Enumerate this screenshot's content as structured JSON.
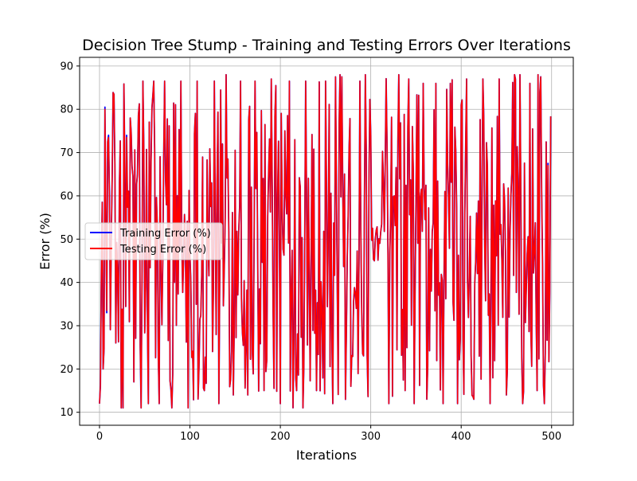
{
  "chart_data": {
    "type": "line",
    "title": "Decision Tree Stump - Training and Testing Errors Over Iterations",
    "xlabel": "Iterations",
    "ylabel": "Error (%)",
    "xlim": [
      -22,
      524
    ],
    "ylim": [
      7,
      92
    ],
    "xticks": [
      0,
      100,
      200,
      300,
      400,
      500
    ],
    "yticks": [
      10,
      20,
      30,
      40,
      50,
      60,
      70,
      80,
      90
    ],
    "grid": true,
    "legend_position": "center-left",
    "n_points": 500,
    "series": [
      {
        "name": "Training Error (%)",
        "color": "#0000ff",
        "anchors": [
          [
            0,
            12
          ],
          [
            2,
            41.5
          ],
          [
            4,
            20
          ],
          [
            6,
            80.5
          ],
          [
            8,
            33
          ],
          [
            10,
            74
          ],
          [
            14,
            64
          ],
          [
            18,
            26
          ],
          [
            22,
            63
          ],
          [
            26,
            11
          ],
          [
            30,
            74
          ],
          [
            34,
            78
          ],
          [
            38,
            17
          ],
          [
            42,
            65
          ],
          [
            46,
            11
          ],
          [
            48,
            86.5
          ],
          [
            54,
            12
          ],
          [
            60,
            86.5
          ],
          [
            66,
            12
          ],
          [
            72,
            86.5
          ],
          [
            80,
            11
          ],
          [
            90,
            86.5
          ],
          [
            98,
            11
          ],
          [
            108,
            86.5
          ],
          [
            116,
            15
          ],
          [
            124,
            63
          ],
          [
            132,
            12
          ],
          [
            140,
            88
          ],
          [
            148,
            14
          ],
          [
            156,
            86.5
          ],
          [
            164,
            14
          ],
          [
            172,
            86.5
          ],
          [
            182,
            15
          ],
          [
            190,
            87
          ],
          [
            200,
            12
          ],
          [
            210,
            86.5
          ],
          [
            218,
            15
          ],
          [
            228,
            86.5
          ],
          [
            240,
            15
          ],
          [
            250,
            86.5
          ],
          [
            258,
            12
          ],
          [
            268,
            87.5
          ],
          [
            278,
            16
          ],
          [
            288,
            86.5
          ],
          [
            296,
            23
          ],
          [
            300,
            74
          ],
          [
            304,
            45
          ],
          [
            316,
            68
          ],
          [
            320,
            12
          ],
          [
            326,
            60
          ],
          [
            338,
            15
          ],
          [
            342,
            87
          ],
          [
            348,
            12
          ],
          [
            358,
            86
          ],
          [
            362,
            13
          ],
          [
            372,
            86
          ],
          [
            380,
            12
          ],
          [
            388,
            86
          ],
          [
            396,
            12
          ],
          [
            406,
            87
          ],
          [
            414,
            13
          ],
          [
            424,
            87
          ],
          [
            432,
            12
          ],
          [
            442,
            87
          ],
          [
            450,
            14
          ],
          [
            460,
            87
          ],
          [
            468,
            12
          ],
          [
            476,
            86
          ],
          [
            484,
            15
          ],
          [
            488,
            87.5
          ],
          [
            492,
            12
          ],
          [
            496,
            67.5
          ],
          [
            500,
            57
          ]
        ]
      },
      {
        "name": "Testing Error (%)",
        "color": "#ff0000",
        "anchors": [
          [
            0,
            12
          ],
          [
            2,
            41
          ],
          [
            4,
            20
          ],
          [
            6,
            80
          ],
          [
            8,
            33.5
          ],
          [
            10,
            73.5
          ],
          [
            14,
            64.5
          ],
          [
            18,
            26
          ],
          [
            22,
            62.5
          ],
          [
            26,
            11
          ],
          [
            30,
            73.5
          ],
          [
            34,
            78
          ],
          [
            38,
            17
          ],
          [
            42,
            65
          ],
          [
            46,
            11
          ],
          [
            48,
            86.5
          ],
          [
            54,
            12
          ],
          [
            60,
            86.5
          ],
          [
            66,
            12
          ],
          [
            72,
            86.5
          ],
          [
            80,
            11
          ],
          [
            90,
            86.5
          ],
          [
            98,
            11
          ],
          [
            108,
            86.5
          ],
          [
            116,
            15
          ],
          [
            124,
            63
          ],
          [
            132,
            12
          ],
          [
            140,
            88
          ],
          [
            148,
            14
          ],
          [
            156,
            86.5
          ],
          [
            164,
            14
          ],
          [
            172,
            86.5
          ],
          [
            182,
            15
          ],
          [
            190,
            87
          ],
          [
            200,
            12
          ],
          [
            210,
            86.5
          ],
          [
            218,
            15
          ],
          [
            228,
            86.5
          ],
          [
            240,
            15
          ],
          [
            250,
            86.5
          ],
          [
            258,
            12
          ],
          [
            268,
            87.5
          ],
          [
            278,
            16
          ],
          [
            288,
            86.5
          ],
          [
            296,
            23
          ],
          [
            300,
            74
          ],
          [
            304,
            45
          ],
          [
            316,
            67.5
          ],
          [
            320,
            12
          ],
          [
            326,
            60
          ],
          [
            338,
            15
          ],
          [
            342,
            87
          ],
          [
            348,
            12
          ],
          [
            358,
            86
          ],
          [
            362,
            13
          ],
          [
            372,
            86
          ],
          [
            380,
            12
          ],
          [
            388,
            86
          ],
          [
            396,
            12
          ],
          [
            406,
            87
          ],
          [
            414,
            13
          ],
          [
            424,
            87
          ],
          [
            432,
            12
          ],
          [
            442,
            87
          ],
          [
            450,
            14
          ],
          [
            460,
            87
          ],
          [
            468,
            12
          ],
          [
            476,
            86
          ],
          [
            484,
            15
          ],
          [
            488,
            87.5
          ],
          [
            492,
            12
          ],
          [
            496,
            67
          ],
          [
            500,
            56.5
          ]
        ]
      }
    ]
  }
}
